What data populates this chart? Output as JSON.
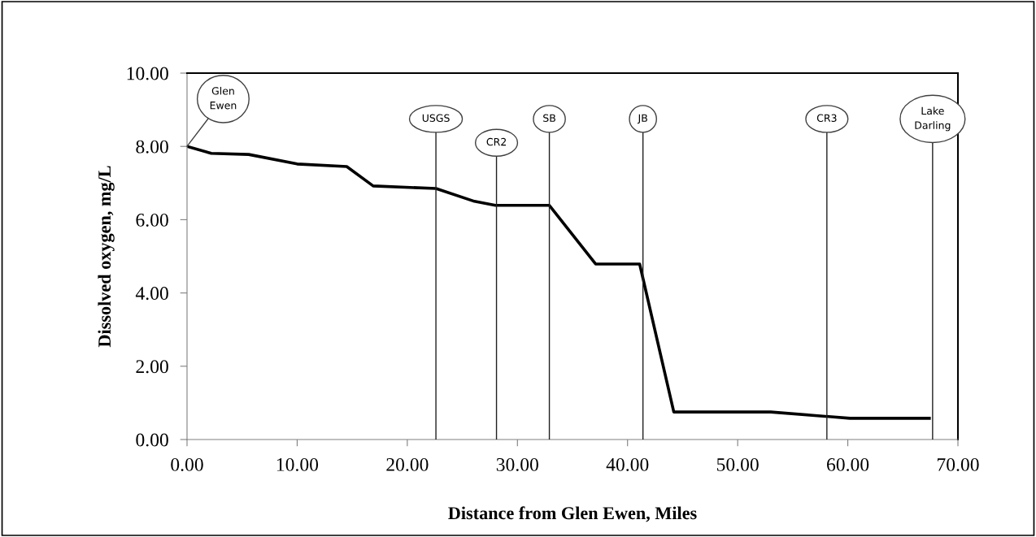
{
  "chart_data": {
    "type": "line",
    "xlabel": "Distance from Glen Ewen, Miles",
    "ylabel": "Dissolved oxygen, mg/L",
    "x": [
      0,
      2.2,
      5.6,
      10.0,
      14.5,
      16.9,
      22.6,
      26.1,
      28.0,
      32.9,
      37.1,
      41.1,
      44.2,
      53.0,
      60.2,
      67.4
    ],
    "series": [
      {
        "color": "#000000",
        "values": [
          8.0,
          7.81,
          7.78,
          7.52,
          7.45,
          6.92,
          6.85,
          6.5,
          6.39,
          6.39,
          4.79,
          4.79,
          0.75,
          0.75,
          0.58,
          0.58
        ]
      }
    ],
    "xlim": [
      0,
      70
    ],
    "xticks": [
      {
        "value": 0,
        "label": "0.00"
      },
      {
        "value": 10,
        "label": "10.00"
      },
      {
        "value": 20,
        "label": "20.00"
      },
      {
        "value": 30,
        "label": "30.00"
      },
      {
        "value": 40,
        "label": "40.00"
      },
      {
        "value": 50,
        "label": "50.00"
      },
      {
        "value": 60,
        "label": "60.00"
      },
      {
        "value": 70,
        "label": "70.00"
      }
    ],
    "ylim": [
      0,
      10
    ],
    "yticks": [
      {
        "value": 0,
        "label": "0.00"
      },
      {
        "value": 2,
        "label": "2.00"
      },
      {
        "value": 4,
        "label": "4.00"
      },
      {
        "value": 6,
        "label": "6.00"
      },
      {
        "value": 8,
        "label": "8.00"
      },
      {
        "value": 10,
        "label": "10.00"
      }
    ],
    "annotations": [
      {
        "text": "Glen\nEwen",
        "x": 0,
        "y": 8.0
      }
    ],
    "ref_lines": [
      {
        "axis": "x",
        "value": 22.6,
        "label": "USGS",
        "color": "#202020"
      },
      {
        "axis": "x",
        "value": 28.1,
        "label": "CR2",
        "color": "#202020"
      },
      {
        "axis": "x",
        "value": 32.9,
        "label": "SB",
        "color": "#202020"
      },
      {
        "axis": "x",
        "value": 41.4,
        "label": "JB",
        "color": "#202020"
      },
      {
        "axis": "x",
        "value": 58.1,
        "label": "CR3",
        "color": "#202020"
      },
      {
        "axis": "x",
        "value": 67.7,
        "label": "Lake\nDarling",
        "color": "#202020"
      }
    ],
    "grid": false,
    "legend": false,
    "marker": "none",
    "line_style": "solid"
  }
}
